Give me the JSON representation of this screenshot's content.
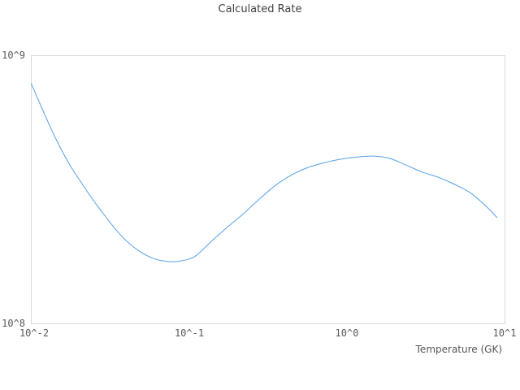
{
  "colors": {
    "line": "#55a0e6",
    "frame": "#d9d9d9",
    "title_text": "#404040",
    "tick_text": "#595959"
  },
  "chart_data": {
    "type": "line",
    "title": "Calculated Rate",
    "xlabel": "Temperature (GK)",
    "ylabel": "",
    "xscale": "log",
    "yscale": "log",
    "xlim": [
      0.01,
      10
    ],
    "ylim": [
      100000000.0,
      1000000000.0
    ],
    "grid": false,
    "legend": "none",
    "x_ticks": [
      {
        "value": 0.01,
        "label": "10^-2"
      },
      {
        "value": 0.1,
        "label": "10^-1"
      },
      {
        "value": 1,
        "label": "10^0"
      },
      {
        "value": 10,
        "label": "10^1"
      }
    ],
    "y_ticks": [
      {
        "value": 1000000000.0,
        "label": "10^9"
      },
      {
        "value": 100000000.0,
        "label": "10^8"
      }
    ],
    "series": [
      {
        "name": "calculated-rate",
        "color": "#55a0e6",
        "x": [
          0.01,
          0.0121,
          0.0144,
          0.0172,
          0.0206,
          0.0246,
          0.0294,
          0.0351,
          0.0419,
          0.0501,
          0.0598,
          0.0715,
          0.0854,
          0.108,
          0.137,
          0.174,
          0.22,
          0.279,
          0.354,
          0.449,
          0.568,
          0.72,
          0.913,
          1.16,
          1.47,
          1.86,
          2.36,
          2.99,
          3.78,
          4.8,
          6.08,
          7.71,
          8.9
        ],
        "y": [
          786000000.0,
          607000000.0,
          486000000.0,
          399000000.0,
          338000000.0,
          290000000.0,
          252000000.0,
          221000000.0,
          199000000.0,
          184000000.0,
          175000000.0,
          171000000.0,
          171000000.0,
          178000000.0,
          202000000.0,
          229000000.0,
          257000000.0,
          292000000.0,
          329000000.0,
          360000000.0,
          383000000.0,
          399000000.0,
          411000000.0,
          419000000.0,
          422000000.0,
          414000000.0,
          391000000.0,
          368000000.0,
          352000000.0,
          331000000.0,
          307000000.0,
          272000000.0,
          249000000.0
        ]
      }
    ]
  }
}
